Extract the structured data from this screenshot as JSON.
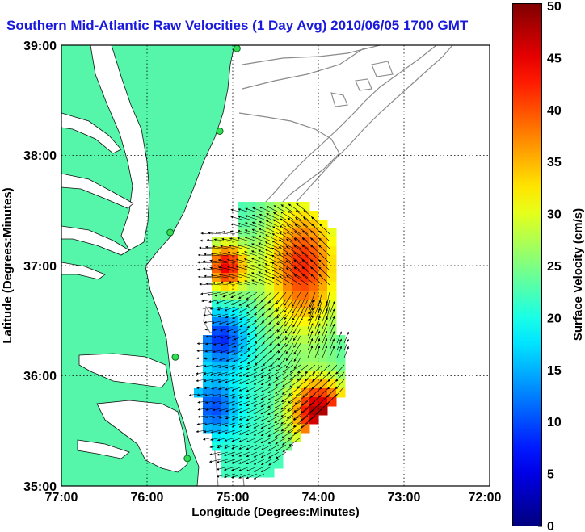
{
  "title": "Southern Mid-Atlantic Raw Velocities (1 Day Avg) 2010/06/05 1700 GMT",
  "map": {
    "x_axis_label": "Longitude (Degrees:Minutes)",
    "y_axis_label": "Latitude (Degrees:Minutes)",
    "x_ticks": [
      "77:00",
      "76:00",
      "75:00",
      "74:00",
      "73:00",
      "72:00"
    ],
    "y_ticks": [
      "39:00",
      "38:00",
      "37:00",
      "36:00",
      "35:00"
    ],
    "lon_range": [
      -77,
      -72
    ],
    "lat_range": [
      35,
      39
    ],
    "land_color": "#55f5aa",
    "grid": "dotted"
  },
  "colorbar": {
    "label": "Surface Velocity (cm/s)",
    "ticks": [
      "0",
      "5",
      "10",
      "15",
      "20",
      "25",
      "30",
      "35",
      "40",
      "45",
      "50"
    ],
    "range": [
      0,
      50
    ],
    "colormap": "jet"
  },
  "stations": [
    {
      "lon": -74.95,
      "lat": 38.97
    },
    {
      "lon": -75.15,
      "lat": 38.22
    },
    {
      "lon": -75.73,
      "lat": 37.3
    },
    {
      "lon": -75.67,
      "lat": 36.17
    },
    {
      "lon": -75.53,
      "lat": 35.25
    }
  ]
}
